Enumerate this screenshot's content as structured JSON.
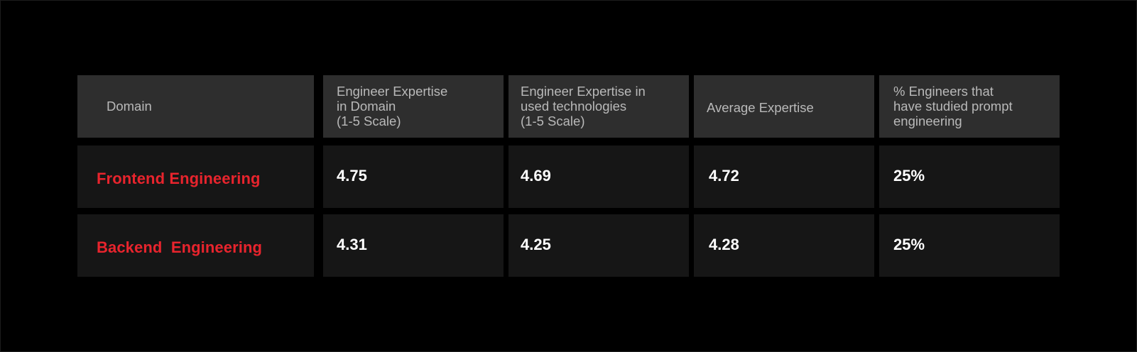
{
  "chart_data": {
    "type": "table",
    "columns": [
      "Domain",
      "Engineer Expertise\nin Domain\n(1-5 Scale)",
      "Engineer Expertise in\nused technologies\n(1-5 Scale)",
      "Average Expertise",
      "% Engineers that\nhave studied prompt\nengineering"
    ],
    "rows": [
      {
        "domain": "Frontend Engineering",
        "values": [
          "4.75",
          "4.69",
          "4.72",
          "25%"
        ]
      },
      {
        "domain": "Backend  Engineering",
        "values": [
          "4.31",
          "4.25",
          "4.28",
          "25%"
        ]
      }
    ]
  },
  "colors": {
    "background": "#000000",
    "header_cell": "#2e2e2e",
    "body_cell": "#161616",
    "header_text": "#b9b9b9",
    "domain_text": "#e8242d",
    "value_text": "#ffffff"
  }
}
